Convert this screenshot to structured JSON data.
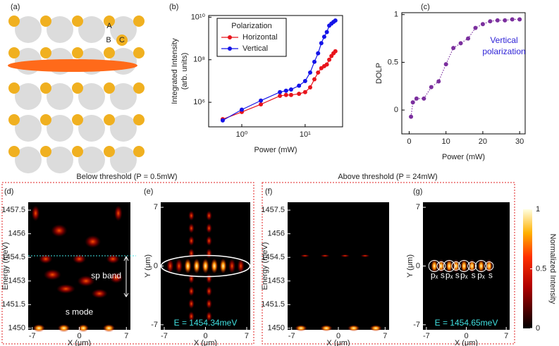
{
  "panel_a": {
    "label": "(a)",
    "sites": [
      "A",
      "B",
      "C"
    ]
  },
  "chart_data": [
    {
      "type": "line",
      "label": "(b)",
      "ylabel": [
        "Integrated Intensity",
        "(arb. units)"
      ],
      "xlabel": "Power (mW)",
      "xscale": "log",
      "yscale": "log",
      "xlim": [
        0.3,
        39
      ],
      "ylim": [
        70000,
        12000000000
      ],
      "xticks": [
        {
          "value": 1,
          "label": "10⁰"
        },
        {
          "value": 10,
          "label": "10¹"
        }
      ],
      "yticks": [
        {
          "value": 1000000,
          "label": "10⁶"
        },
        {
          "value": 100000000,
          "label": "10⁸"
        },
        {
          "value": 10000000000,
          "label": "10¹⁰"
        }
      ],
      "legend": {
        "title": "Polarization",
        "position": "upper left"
      },
      "line_style": "solid",
      "x": [
        0.5,
        1,
        2,
        4,
        5,
        6,
        8,
        10,
        12,
        14,
        16,
        18,
        20,
        22,
        24,
        26,
        28,
        30
      ],
      "series": [
        {
          "name": "Horizontal",
          "color": "#e8141c",
          "values": [
            160000,
            350000,
            800000,
            2000000,
            2200000,
            2200000,
            2500000,
            3000000,
            5000000,
            12000000,
            25000000,
            40000000,
            50000000,
            60000000,
            100000000,
            150000000,
            200000000,
            250000000
          ]
        },
        {
          "name": "Vertical",
          "color": "#1414e8",
          "values": [
            140000,
            450000,
            1200000,
            3000000,
            3500000,
            4000000,
            6000000,
            10000000,
            25000000,
            80000000,
            200000000,
            600000000,
            1200000000,
            2000000000,
            4000000000,
            5000000000,
            6000000000,
            7000000000
          ]
        }
      ]
    },
    {
      "type": "line",
      "label": "(c)",
      "ylabel": [
        "DOLP"
      ],
      "xlabel": "Power (mW)",
      "xlim": [
        -2,
        31.5
      ],
      "ylim": [
        -0.25,
        1.02
      ],
      "xticks": [
        0,
        10,
        20,
        30
      ],
      "yticks": [
        0,
        0.5,
        1
      ],
      "line_style": "dotted",
      "annotation": [
        "Vertical",
        "polarization"
      ],
      "annotation_color": "#2b1fd6",
      "x": [
        0.5,
        1,
        2,
        4,
        6,
        8,
        10,
        12,
        14,
        16,
        18,
        20,
        22,
        24,
        26,
        28,
        30
      ],
      "series": [
        {
          "name": "DOLP",
          "color": "#7b2f9e",
          "values": [
            -0.07,
            0.08,
            0.12,
            0.12,
            0.24,
            0.3,
            0.48,
            0.65,
            0.7,
            0.75,
            0.86,
            0.9,
            0.93,
            0.94,
            0.94,
            0.95,
            0.95
          ]
        }
      ]
    },
    {
      "type": "heatmap",
      "label": "(d)",
      "ylabel": "Energy (meV)",
      "xlabel": "X (μm)",
      "xlim": [
        -7.6,
        7.6
      ],
      "ylim": [
        1449.9,
        1458
      ],
      "xticks": [
        -7,
        0,
        7
      ],
      "yticks": [
        1457.5,
        1456,
        1454.5,
        1453,
        1451.5,
        1450
      ],
      "annotations": [
        "sp band",
        "s mode"
      ]
    },
    {
      "type": "heatmap",
      "label": "(e)",
      "ylabel": "Y (μm)",
      "xlabel": "X (μm)",
      "xlim": [
        -7.6,
        7.6
      ],
      "ylim": [
        -7.6,
        7.6
      ],
      "xticks": [
        -7,
        0,
        7
      ],
      "yticks": [
        7,
        0,
        -7
      ],
      "annotations": [
        "E = 1454.34meV"
      ]
    },
    {
      "type": "heatmap",
      "label": "(f)",
      "ylabel": "Energy (meV)",
      "xlabel": "X (μm)",
      "xlim": [
        -7.6,
        7.6
      ],
      "ylim": [
        1449.9,
        1458
      ],
      "xticks": [
        -7,
        0,
        7
      ],
      "yticks": [
        1457.5,
        1456,
        1454.5,
        1453,
        1451.5,
        1450
      ],
      "annotations": []
    },
    {
      "type": "heatmap",
      "label": "(g)",
      "ylabel": "Y (μm)",
      "xlabel": "X (μm)",
      "xlim": [
        -7.6,
        7.6
      ],
      "ylim": [
        -7.6,
        7.6
      ],
      "xticks": [
        -7,
        0,
        7
      ],
      "yticks": [
        7,
        0,
        -7
      ],
      "annotations": [
        "E = 1454.65meV"
      ],
      "mode_labels": [
        "pₓ",
        "s",
        "pₓ",
        "s",
        "pₓ",
        "s",
        "pₓ",
        "s"
      ]
    }
  ],
  "groups": [
    {
      "title": "Below threshold (P = 0.5mW)"
    },
    {
      "title": "Above threshold (P = 24mW)"
    }
  ],
  "colorbar": {
    "label": "Normalized Intensity",
    "lim": [
      0,
      1
    ],
    "ticks": [
      0,
      0.5,
      1
    ]
  }
}
